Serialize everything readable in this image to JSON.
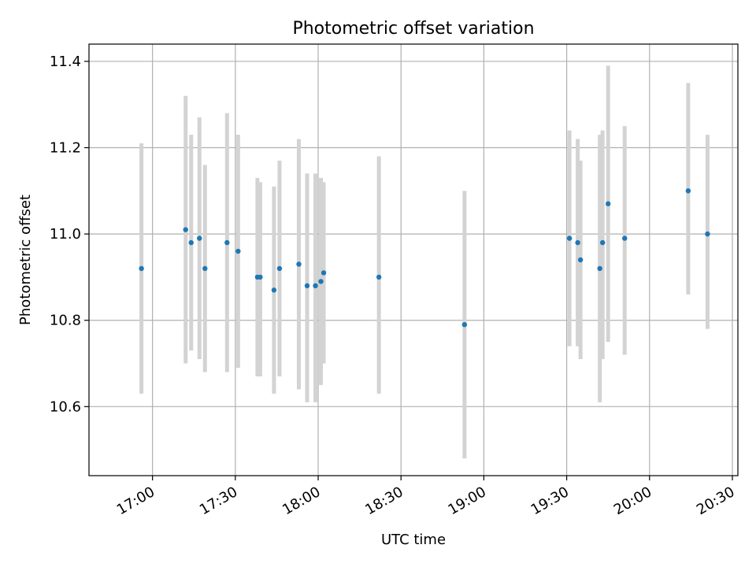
{
  "chart_data": {
    "type": "scatter",
    "title": "Photometric offset variation",
    "xlabel": "UTC time",
    "ylabel": "Photometric offset",
    "grid": true,
    "x_axis_kind": "time",
    "xlim": [
      "16:37",
      "20:32"
    ],
    "ylim": [
      10.44,
      11.44
    ],
    "x_ticks": [
      "17:00",
      "17:30",
      "18:00",
      "18:30",
      "19:00",
      "19:30",
      "20:00",
      "20:30"
    ],
    "y_ticks": [
      10.6,
      10.8,
      11.0,
      11.2,
      11.4
    ],
    "y_tick_labels": [
      "10.6",
      "10.8",
      "11.0",
      "11.2",
      "11.4"
    ],
    "colors": {
      "points": "#1f77b4",
      "errorbars": "#d3d3d3",
      "grid": "#b0b0b0"
    },
    "points": [
      {
        "x": "16:56",
        "y": 10.92,
        "lo": 10.63,
        "hi": 11.21
      },
      {
        "x": "17:12",
        "y": 11.01,
        "lo": 10.7,
        "hi": 11.32
      },
      {
        "x": "17:14",
        "y": 10.98,
        "lo": 10.73,
        "hi": 11.23
      },
      {
        "x": "17:17",
        "y": 10.99,
        "lo": 10.71,
        "hi": 11.27
      },
      {
        "x": "17:19",
        "y": 10.92,
        "lo": 10.68,
        "hi": 11.16
      },
      {
        "x": "17:27",
        "y": 10.98,
        "lo": 10.68,
        "hi": 11.28
      },
      {
        "x": "17:31",
        "y": 10.96,
        "lo": 10.69,
        "hi": 11.23
      },
      {
        "x": "17:38",
        "y": 10.9,
        "lo": 10.67,
        "hi": 11.13
      },
      {
        "x": "17:39",
        "y": 10.9,
        "lo": 10.67,
        "hi": 11.12
      },
      {
        "x": "17:44",
        "y": 10.87,
        "lo": 10.63,
        "hi": 11.11
      },
      {
        "x": "17:46",
        "y": 10.92,
        "lo": 10.67,
        "hi": 11.17
      },
      {
        "x": "17:53",
        "y": 10.93,
        "lo": 10.64,
        "hi": 11.22
      },
      {
        "x": "17:56",
        "y": 10.88,
        "lo": 10.61,
        "hi": 11.14
      },
      {
        "x": "17:59",
        "y": 10.88,
        "lo": 10.61,
        "hi": 11.14
      },
      {
        "x": "18:01",
        "y": 10.89,
        "lo": 10.65,
        "hi": 11.13
      },
      {
        "x": "18:02",
        "y": 10.91,
        "lo": 10.7,
        "hi": 11.12
      },
      {
        "x": "18:22",
        "y": 10.9,
        "lo": 10.63,
        "hi": 11.18
      },
      {
        "x": "18:53",
        "y": 10.79,
        "lo": 10.48,
        "hi": 11.1
      },
      {
        "x": "19:31",
        "y": 10.99,
        "lo": 10.74,
        "hi": 11.24
      },
      {
        "x": "19:34",
        "y": 10.98,
        "lo": 10.74,
        "hi": 11.22
      },
      {
        "x": "19:35",
        "y": 10.94,
        "lo": 10.71,
        "hi": 11.17
      },
      {
        "x": "19:42",
        "y": 10.92,
        "lo": 10.61,
        "hi": 11.23
      },
      {
        "x": "19:43",
        "y": 10.98,
        "lo": 10.71,
        "hi": 11.24
      },
      {
        "x": "19:45",
        "y": 11.07,
        "lo": 10.75,
        "hi": 11.39
      },
      {
        "x": "19:51",
        "y": 10.99,
        "lo": 10.72,
        "hi": 11.25
      },
      {
        "x": "20:14",
        "y": 11.1,
        "lo": 10.86,
        "hi": 11.35
      },
      {
        "x": "20:21",
        "y": 11.0,
        "lo": 10.78,
        "hi": 11.23
      }
    ]
  }
}
